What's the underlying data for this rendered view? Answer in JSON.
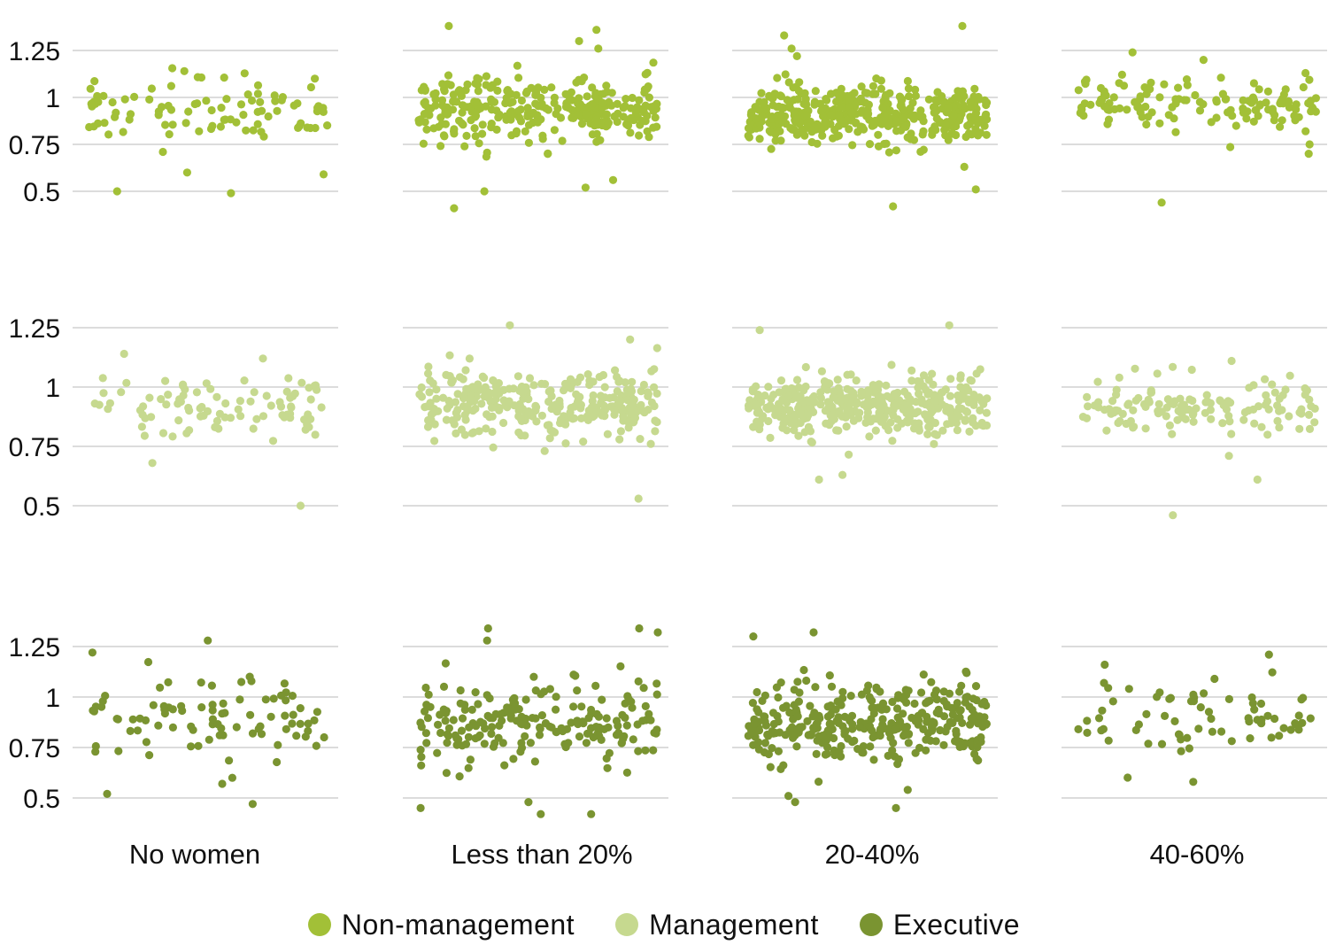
{
  "chart_data": {
    "type": "scatter",
    "layout": "faceted strip plot (rows = role, columns = share of women)",
    "categories": [
      "No women",
      "Less than 20%",
      "20-40%",
      "40-60%"
    ],
    "y_ticks": [
      "1.25",
      "1",
      "0.75",
      "0.5"
    ],
    "y_tick_values": [
      1.25,
      1.0,
      0.75,
      0.5
    ],
    "grid": true,
    "legend_position": "bottom-center",
    "rows": [
      {
        "name": "Non-management",
        "color": "#a2c037",
        "ylim": [
          0.42,
          1.38
        ],
        "columns": [
          {
            "category": "No women",
            "n": 90,
            "mean": 0.93,
            "spread": 0.12,
            "outliers": [
              0.49,
              0.5,
              0.59,
              0.6,
              1.1,
              1.14
            ]
          },
          {
            "category": "Less than 20%",
            "n": 300,
            "mean": 0.93,
            "spread": 0.12,
            "outliers": [
              0.41,
              0.5,
              0.52,
              0.56,
              1.26,
              1.3,
              1.36,
              1.38
            ]
          },
          {
            "category": "20-40%",
            "n": 420,
            "mean": 0.91,
            "spread": 0.11,
            "outliers": [
              0.42,
              0.51,
              0.63,
              1.22,
              1.26,
              1.33,
              1.38
            ]
          },
          {
            "category": "40-60%",
            "n": 130,
            "mean": 0.95,
            "spread": 0.1,
            "outliers": [
              0.44,
              0.7,
              0.75,
              1.2,
              1.24
            ]
          }
        ]
      },
      {
        "name": "Management",
        "color": "#c6d98f",
        "ylim": [
          0.42,
          1.32
        ],
        "columns": [
          {
            "category": "No women",
            "n": 90,
            "mean": 0.91,
            "spread": 0.1,
            "outliers": [
              0.5,
              0.68,
              1.14,
              1.12
            ]
          },
          {
            "category": "Less than 20%",
            "n": 300,
            "mean": 0.93,
            "spread": 0.1,
            "outliers": [
              0.53,
              1.2,
              1.26
            ]
          },
          {
            "category": "20-40%",
            "n": 420,
            "mean": 0.92,
            "spread": 0.09,
            "outliers": [
              0.61,
              0.63,
              1.24,
              1.26
            ]
          },
          {
            "category": "40-60%",
            "n": 130,
            "mean": 0.92,
            "spread": 0.08,
            "outliers": [
              0.46,
              0.61,
              0.71,
              1.11
            ]
          }
        ]
      },
      {
        "name": "Executive",
        "color": "#7a9431",
        "ylim": [
          0.4,
          1.36
        ],
        "columns": [
          {
            "category": "No women",
            "n": 85,
            "mean": 0.9,
            "spread": 0.14,
            "outliers": [
              0.47,
              0.52,
              0.57,
              0.6,
              1.22,
              1.28
            ]
          },
          {
            "category": "Less than 20%",
            "n": 200,
            "mean": 0.87,
            "spread": 0.14,
            "outliers": [
              0.42,
              0.42,
              0.45,
              0.48,
              1.28,
              1.32,
              1.34,
              1.34
            ]
          },
          {
            "category": "20-40%",
            "n": 330,
            "mean": 0.88,
            "spread": 0.14,
            "outliers": [
              0.45,
              0.48,
              0.51,
              0.54,
              1.3,
              1.32
            ]
          },
          {
            "category": "40-60%",
            "n": 70,
            "mean": 0.9,
            "spread": 0.14,
            "outliers": [
              0.58,
              1.16,
              1.21
            ]
          }
        ]
      }
    ]
  },
  "legend": {
    "items": [
      {
        "label": "Non-management",
        "color": "#a2c037"
      },
      {
        "label": "Management",
        "color": "#c6d98f"
      },
      {
        "label": "Executive",
        "color": "#7a9431"
      }
    ]
  }
}
